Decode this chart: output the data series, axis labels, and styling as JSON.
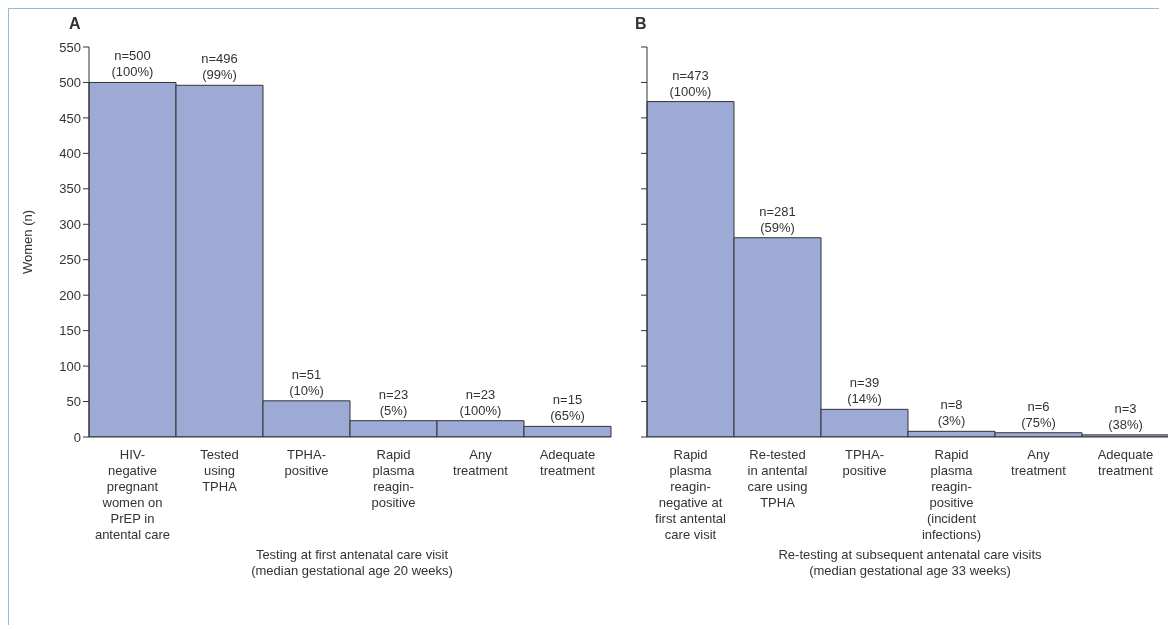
{
  "chart_data": [
    {
      "type": "bar",
      "title": "A",
      "ylabel": "Women (n)",
      "xlabel": "Testing at first antenatal care visit\n(median gestational age 20 weeks)",
      "categories": [
        "HIV-\nnegative\npregnant\nwomen on\nPrEP in\nantental care",
        "Tested\nusing\nTPHA",
        "TPHA-\npositive",
        "Rapid\nplasma\nreagin-\npositive",
        "Any\ntreatment",
        "Adequate\ntreatment"
      ],
      "values": [
        500,
        496,
        51,
        23,
        23,
        15
      ],
      "value_labels": [
        "n=500\n(100%)",
        "n=496\n(99%)",
        "n=51\n(10%)",
        "n=23\n(5%)",
        "n=23\n(100%)",
        "n=15\n(65%)"
      ],
      "color": "#9eaad6",
      "ylim": [
        0,
        550
      ],
      "yticks": [
        0,
        50,
        100,
        150,
        200,
        250,
        300,
        350,
        400,
        450,
        500,
        550
      ]
    },
    {
      "type": "bar",
      "title": "B",
      "xlabel": "Re-testing at subsequent antenatal care visits\n(median gestational age 33 weeks)",
      "categories": [
        "Rapid\nplasma\nreagin-\nnegative at\nfirst antental\ncare visit",
        "Re-tested\nin antental\ncare using\nTPHA",
        "TPHA-\npositive",
        "Rapid\nplasma\nreagin-\npositive\n(incident\ninfections)",
        "Any\ntreatment",
        "Adequate\ntreatment"
      ],
      "values": [
        473,
        281,
        39,
        8,
        6,
        3
      ],
      "value_labels": [
        "n=473\n(100%)",
        "n=281\n(59%)",
        "n=39\n(14%)",
        "n=8\n(3%)",
        "n=6\n(75%)",
        "n=3\n(38%)"
      ],
      "color": "#9eaad6",
      "ylim": [
        0,
        550
      ],
      "yticks": [
        0,
        50,
        100,
        150,
        200,
        250,
        300,
        350,
        400,
        450,
        500,
        550
      ],
      "tick_labels": "x"
    }
  ]
}
